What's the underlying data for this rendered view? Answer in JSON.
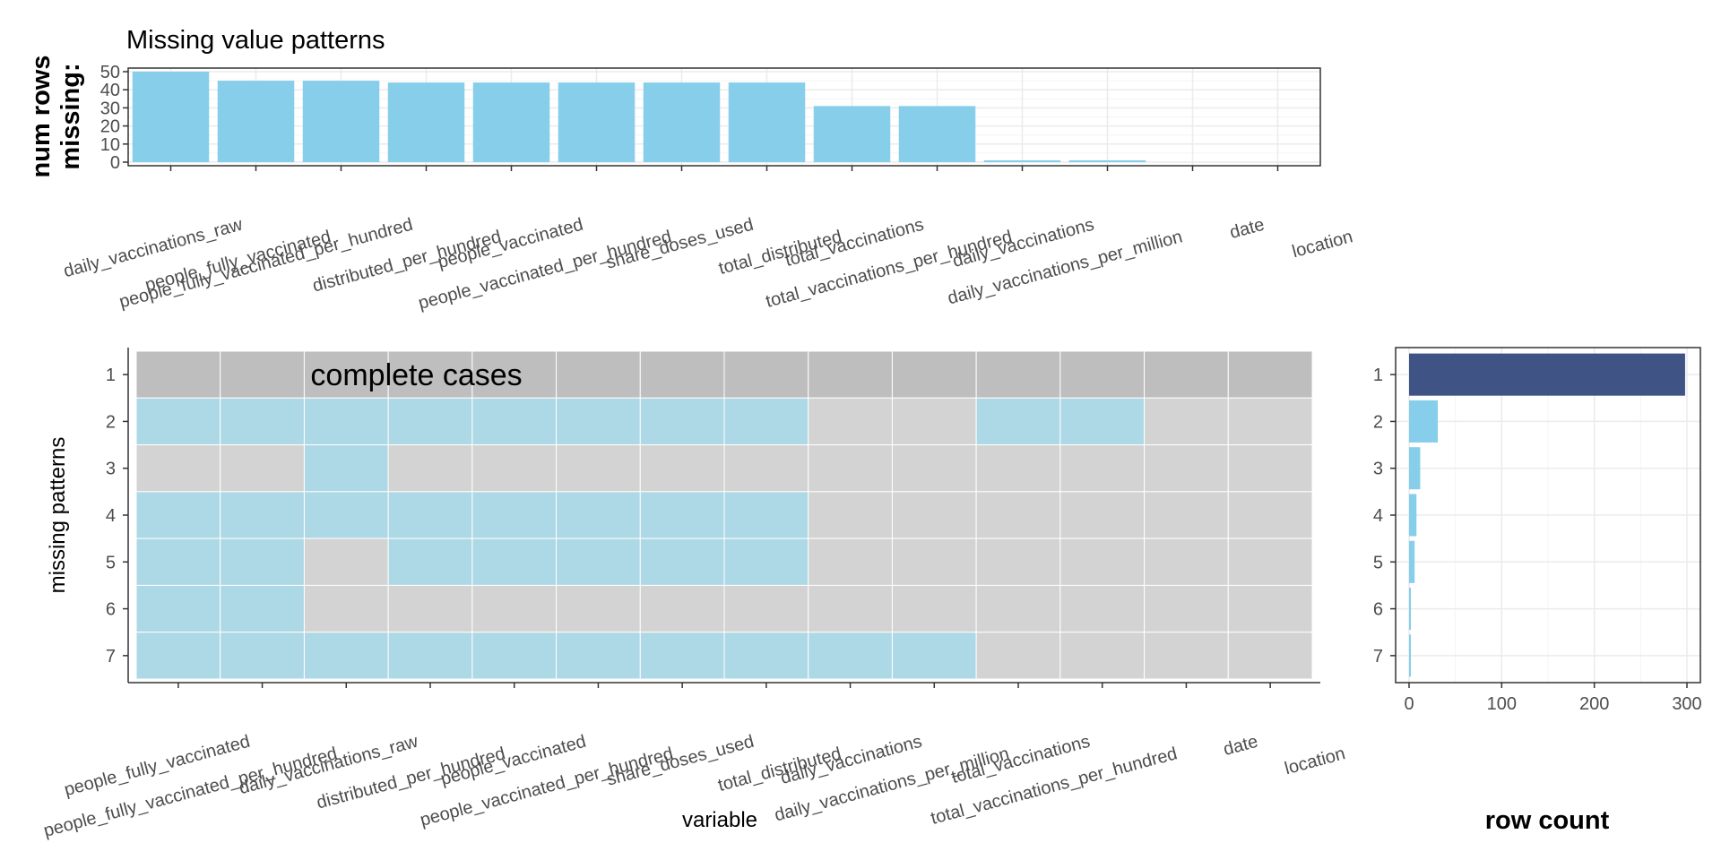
{
  "title": "Missing value patterns",
  "colors": {
    "missing": "#add8e6",
    "present": "#d3d3d3",
    "complete_row": "#bebebe",
    "bar": "#87ceeb",
    "complete_bar": "#3f5384",
    "grid": "#ebebeb",
    "axis": "#333333"
  },
  "chart_data": [
    {
      "id": "missing-by-variable",
      "type": "bar",
      "ylabel": "num rows\nmissing:",
      "ylim": [
        0,
        50
      ],
      "yticks": [
        0,
        10,
        20,
        30,
        40,
        50
      ],
      "categories": [
        "daily_vaccinations_raw",
        "people_fully_vaccinated",
        "people_fully_vaccinated_per_hundred",
        "distributed_per_hundred",
        "people_vaccinated",
        "people_vaccinated_per_hundred",
        "share_doses_used",
        "total_distributed",
        "total_vaccinations",
        "total_vaccinations_per_hundred",
        "daily_vaccinations",
        "daily_vaccinations_per_million",
        "date",
        "location"
      ],
      "values": [
        50,
        45,
        45,
        44,
        44,
        44,
        44,
        44,
        31,
        31,
        1,
        1,
        0,
        0
      ],
      "grid": true
    },
    {
      "id": "missing-patterns",
      "type": "heatmap",
      "xlabel": "variable",
      "ylabel": "missing patterns",
      "annotation": "complete cases",
      "columns": [
        "people_fully_vaccinated",
        "people_fully_vaccinated_per_hundred",
        "daily_vaccinations_raw",
        "distributed_per_hundred",
        "people_vaccinated",
        "people_vaccinated_per_hundred",
        "share_doses_used",
        "total_distributed",
        "daily_vaccinations",
        "daily_vaccinations_per_million",
        "total_vaccinations",
        "total_vaccinations_per_hundred",
        "date",
        "location"
      ],
      "rows": [
        "1",
        "2",
        "3",
        "4",
        "5",
        "6",
        "7"
      ],
      "matrix": [
        [
          0,
          0,
          0,
          0,
          0,
          0,
          0,
          0,
          0,
          0,
          0,
          0,
          0,
          0
        ],
        [
          1,
          1,
          1,
          1,
          1,
          1,
          1,
          1,
          0,
          0,
          1,
          1,
          0,
          0
        ],
        [
          0,
          0,
          1,
          0,
          0,
          0,
          0,
          0,
          0,
          0,
          0,
          0,
          0,
          0
        ],
        [
          1,
          1,
          1,
          1,
          1,
          1,
          1,
          1,
          0,
          0,
          0,
          0,
          0,
          0
        ],
        [
          1,
          1,
          0,
          1,
          1,
          1,
          1,
          1,
          0,
          0,
          0,
          0,
          0,
          0
        ],
        [
          1,
          1,
          0,
          0,
          0,
          0,
          0,
          0,
          0,
          0,
          0,
          0,
          0,
          0
        ],
        [
          1,
          1,
          1,
          1,
          1,
          1,
          1,
          1,
          1,
          1,
          0,
          0,
          0,
          0
        ]
      ],
      "complete_row": 0
    },
    {
      "id": "row-count",
      "type": "bar",
      "orientation": "horizontal",
      "xlabel": "row count",
      "xlim": [
        0,
        300
      ],
      "xticks": [
        0,
        100,
        200,
        300
      ],
      "categories": [
        "1",
        "2",
        "3",
        "4",
        "5",
        "6",
        "7"
      ],
      "values": [
        298,
        31,
        12,
        8,
        6,
        2,
        2
      ],
      "grid": true
    }
  ]
}
